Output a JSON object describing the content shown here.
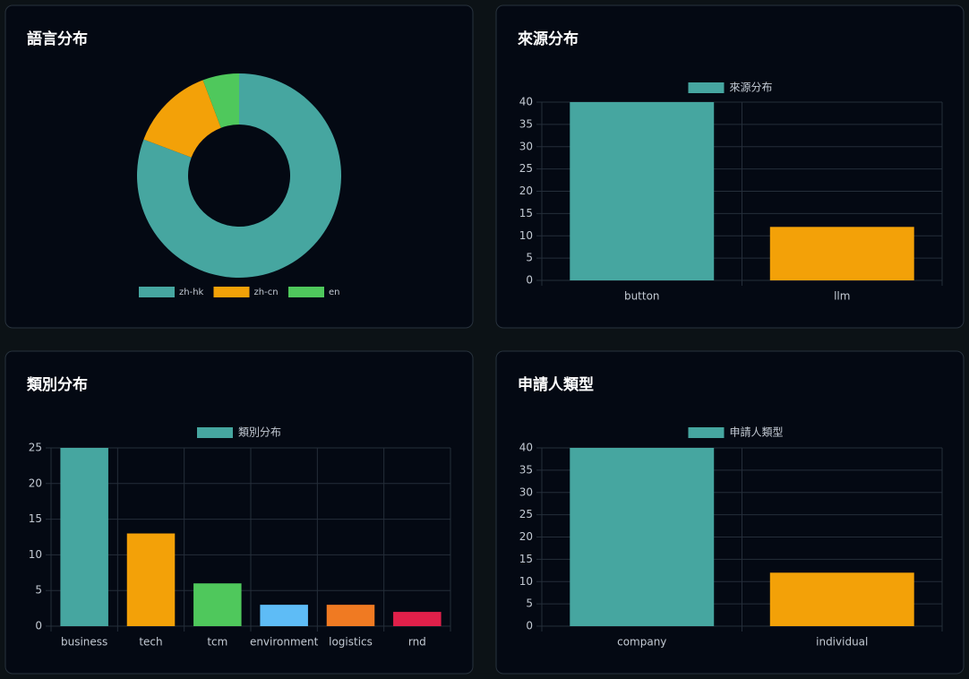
{
  "chart_data": [
    {
      "type": "doughnut",
      "title": "語言分布",
      "categories": [
        "zh-hk",
        "zh-cn",
        "en"
      ],
      "values": [
        42,
        7,
        3
      ],
      "colors": [
        "#46a6a0",
        "#f3a108",
        "#4fc85c"
      ]
    },
    {
      "type": "bar",
      "title": "來源分布",
      "categories": [
        "button",
        "llm"
      ],
      "series": [
        {
          "name": "來源分布",
          "colors": [
            "#46a6a0",
            "#f3a108"
          ],
          "values": [
            40,
            12
          ]
        }
      ],
      "ylim": [
        0,
        40
      ],
      "yticks": [
        0,
        5,
        10,
        15,
        20,
        25,
        30,
        35,
        40
      ],
      "grid": true
    },
    {
      "type": "bar",
      "title": "類別分布",
      "categories": [
        "business",
        "tech",
        "tcm",
        "environment",
        "logistics",
        "rnd"
      ],
      "series": [
        {
          "name": "類別分布",
          "colors": [
            "#46a6a0",
            "#f3a108",
            "#4fc85c",
            "#5ebcf6",
            "#f07a22",
            "#e0204a"
          ],
          "values": [
            25,
            13,
            6,
            3,
            3,
            2
          ]
        }
      ],
      "ylim": [
        0,
        25
      ],
      "yticks": [
        0,
        5,
        10,
        15,
        20,
        25
      ],
      "grid": true
    },
    {
      "type": "bar",
      "title": "申請人類型",
      "categories": [
        "company",
        "individual"
      ],
      "series": [
        {
          "name": "申請人類型",
          "colors": [
            "#46a6a0",
            "#f3a108"
          ],
          "values": [
            40,
            12
          ]
        }
      ],
      "ylim": [
        0,
        40
      ],
      "yticks": [
        0,
        5,
        10,
        15,
        20,
        25,
        30,
        35,
        40
      ],
      "grid": true
    }
  ]
}
